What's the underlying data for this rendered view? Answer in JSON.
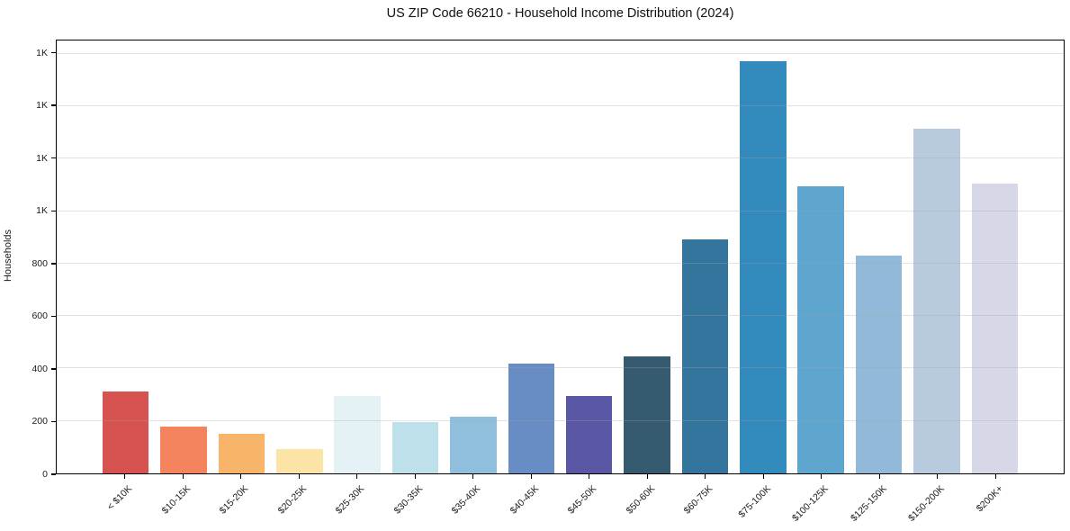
{
  "chart_data": {
    "type": "bar",
    "title": "US ZIP Code 66210 - Household Income Distribution (2024)",
    "xlabel": "",
    "ylabel": "Households",
    "categories": [
      "< $10K",
      "$10-15K",
      "$15-20K",
      "$20-25K",
      "$25-30K",
      "$30-35K",
      "$35-40K",
      "$40-45K",
      "$45-50K",
      "$50-60K",
      "$60-75K",
      "$75-100K",
      "$100-125K",
      "$125-150K",
      "$150-200K",
      "$200K+"
    ],
    "values": [
      312,
      178,
      150,
      91,
      294,
      197,
      215,
      419,
      294,
      445,
      893,
      1572,
      1093,
      830,
      1315,
      1106
    ],
    "bar_colors": [
      "#d6534f",
      "#f3845e",
      "#f8b468",
      "#fce3a6",
      "#e4f1f5",
      "#bde0ea",
      "#90bedd",
      "#678dc4",
      "#5a58a5",
      "#365a70",
      "#34759e",
      "#338abc",
      "#5ea6cd",
      "#92b9d9",
      "#b7cade",
      "#d6d8e8"
    ],
    "ylim": [
      0,
      1650
    ],
    "yticks": [
      {
        "value": 0,
        "label": "0"
      },
      {
        "value": 200,
        "label": "200"
      },
      {
        "value": 400,
        "label": "400"
      },
      {
        "value": 600,
        "label": "600"
      },
      {
        "value": 800,
        "label": "800"
      },
      {
        "value": 1000,
        "label": "1K"
      },
      {
        "value": 1200,
        "label": "1K"
      },
      {
        "value": 1400,
        "label": "1K"
      },
      {
        "value": 1600,
        "label": "1K"
      }
    ],
    "grid": "horizontal",
    "legend": "none",
    "background_color": "#ffffff",
    "spine_color": "#000000",
    "gridline_color": "#e8e8e8",
    "bar_width_slot_fraction": 0.8
  }
}
